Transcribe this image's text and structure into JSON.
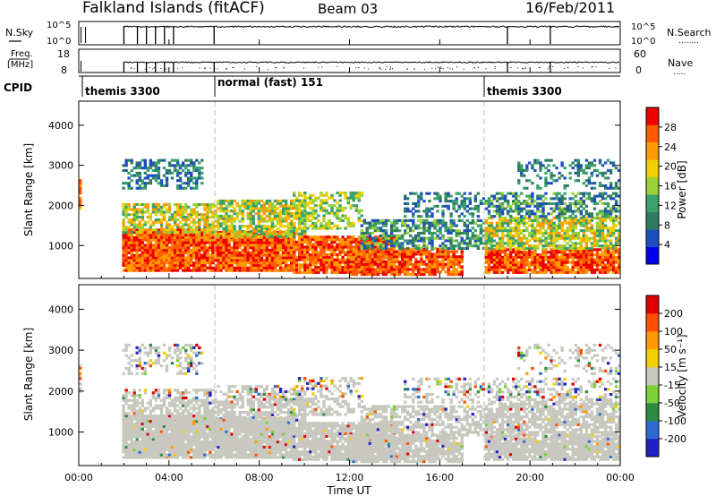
{
  "header": {
    "title": "Falkland Islands (fitACF)",
    "beam": "Beam 03",
    "date": "16/Feb/2011"
  },
  "panels": {
    "nsky": {
      "left_label": "N.Sky",
      "left_ticks": [
        "10^5",
        "10^0"
      ],
      "right_ticks": [
        "10^5",
        "10^0"
      ],
      "right_label": "N.Search",
      "right_label_dots": "........"
    },
    "freq": {
      "left_label_line1": "Freq.",
      "left_label_line2": "[MHz]",
      "left_ticks": [
        "18",
        "8"
      ],
      "right_ticks": [
        "60",
        "0"
      ],
      "right_label": "Nave",
      "right_label_dots": "....."
    },
    "cpid": {
      "label": "CPID",
      "segments": [
        {
          "start_hour": 0.0,
          "label": "themis 3300"
        },
        {
          "start_hour": 6.0,
          "label": "normal (fast) 151"
        },
        {
          "start_hour": 18.0,
          "label": "themis 3300"
        }
      ]
    },
    "power": {
      "ylabel": "Slant Range [km]",
      "cbar_label": "Power [dB]",
      "cbar_ticks": [
        "28",
        "24",
        "20",
        "16",
        "12",
        "8",
        "4"
      ]
    },
    "velocity": {
      "ylabel": "Slant Range [km]",
      "cbar_label": "Velocity [m s⁻¹]",
      "cbar_ticks": [
        "200",
        "100",
        "50",
        "15",
        "-15",
        "-50",
        "-100",
        "-200"
      ]
    }
  },
  "colors": {
    "power_scale": [
      "#0000ee",
      "#1f4fbf",
      "#2e7d5e",
      "#3aa16a",
      "#9ad13a",
      "#f0d000",
      "#ff9a00",
      "#ff5a00",
      "#ee0000"
    ],
    "velocity_scale": [
      "#2020c0",
      "#2e6ad0",
      "#2e8a40",
      "#7cd03a",
      "#c8c8c0",
      "#f0d000",
      "#ff9a00",
      "#ff5000",
      "#e00000"
    ],
    "ground_scatter": "#c8c8c0"
  },
  "chart_data": [
    {
      "type": "heatmap",
      "name": "power",
      "x_ticks": [
        "00:00",
        "04:00",
        "08:00",
        "12:00",
        "16:00",
        "20:00",
        "00:00"
      ],
      "xlabel": "Time UT",
      "ylabel": "Slant Range [km]",
      "y_ticks": [
        1000,
        2000,
        3000,
        4000
      ],
      "xlim_hours": [
        0,
        24
      ],
      "ylim_km": [
        180,
        4600
      ],
      "colorbar_ticks_db": [
        28,
        24,
        20,
        16,
        12,
        8,
        4
      ],
      "dashed_vlines_hours": [
        6,
        18
      ]
    },
    {
      "type": "heatmap",
      "name": "velocity",
      "x_ticks": [
        "00:00",
        "04:00",
        "08:00",
        "12:00",
        "16:00",
        "20:00",
        "00:00"
      ],
      "xlabel": "Time UT",
      "ylabel": "Slant Range [km]",
      "y_ticks": [
        1000,
        2000,
        3000,
        4000
      ],
      "xlim_hours": [
        0,
        24
      ],
      "ylim_km": [
        180,
        4600
      ],
      "colorbar_ticks_ms": [
        200,
        100,
        50,
        15,
        -15,
        -50,
        -100,
        -200
      ],
      "dashed_vlines_hours": [
        6,
        18
      ]
    }
  ],
  "axis": {
    "xlabel": "Time UT",
    "x_ticks": [
      "00:00",
      "04:00",
      "08:00",
      "12:00",
      "16:00",
      "20:00",
      "00:00"
    ],
    "y_ticks": [
      "1000",
      "2000",
      "3000",
      "4000"
    ]
  }
}
